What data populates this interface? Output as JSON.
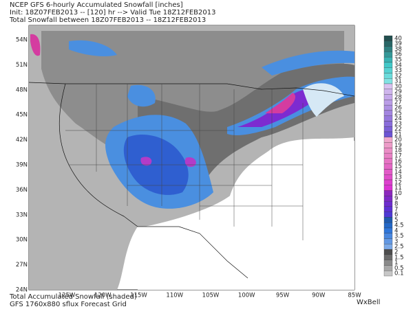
{
  "header": {
    "lines": [
      "NCEP GFS 6-hourly Accumulated Snowfall [inches]",
      "Init: 18Z07FEB2013 -- [120] hr --> Valid Tue 18Z12FEB2013",
      "Total Snowfall between 18Z07FEB2013 -- 18Z12FEB2013"
    ]
  },
  "map": {
    "latitude_labels": [
      "54N",
      "51N",
      "48N",
      "45N",
      "42N",
      "39N",
      "36N",
      "33N",
      "30N",
      "27N",
      "24N"
    ],
    "longitude_labels": [
      "125W",
      "120W",
      "115W",
      "110W",
      "105W",
      "100W",
      "95W",
      "90W",
      "85W"
    ]
  },
  "legend": {
    "levels": [
      40,
      39,
      38,
      36,
      35,
      34,
      33,
      32,
      31,
      30,
      29,
      28,
      27,
      26,
      25,
      24,
      23,
      22,
      21,
      20,
      19,
      18,
      17,
      16,
      15,
      14,
      13,
      12,
      11,
      10,
      9,
      8,
      7,
      6,
      5,
      4.5,
      4,
      3.5,
      3,
      2.5,
      2,
      1.5,
      1,
      0.5,
      0.1
    ]
  },
  "footer": {
    "lines": [
      "Total Accumulated Snowfall (shaded)",
      "GFS 1760x880 sflux Forecast Grid"
    ],
    "brand": "WxBell"
  }
}
